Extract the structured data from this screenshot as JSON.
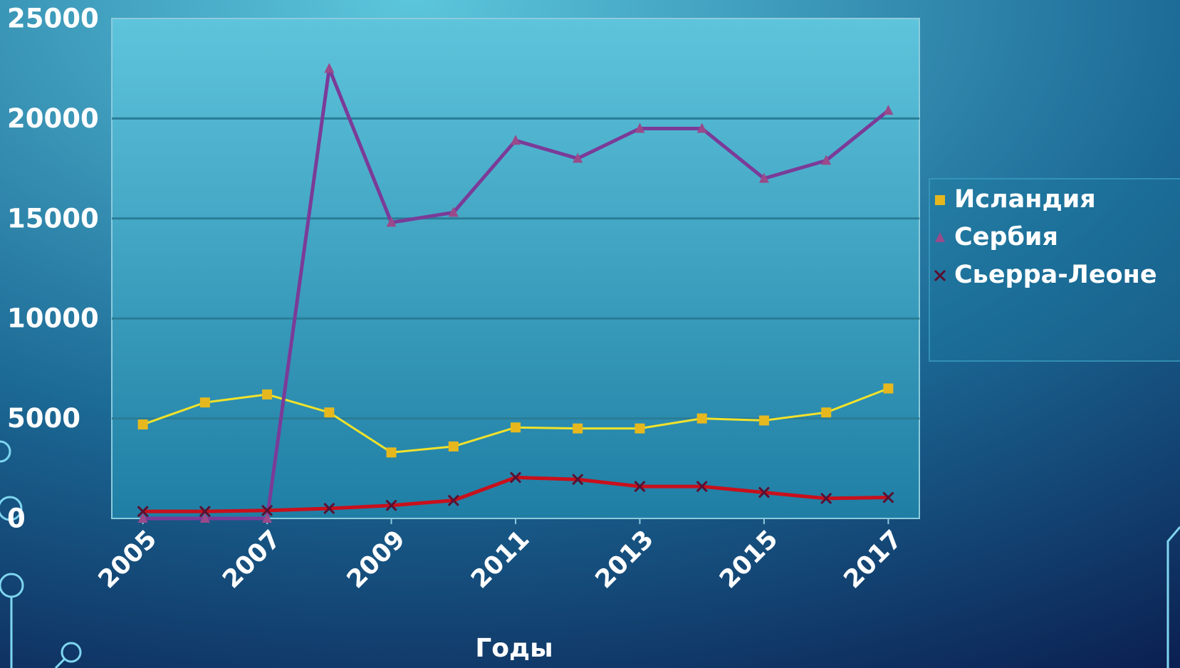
{
  "chart_data": {
    "type": "line",
    "x_label": "Годы",
    "x": [
      2005,
      2006,
      2007,
      2008,
      2009,
      2010,
      2011,
      2012,
      2013,
      2014,
      2015,
      2016,
      2017
    ],
    "xlim": [
      2004.5,
      2017.5
    ],
    "xticks": [
      2005,
      2007,
      2009,
      2011,
      2013,
      2015,
      2017
    ],
    "ylim": [
      0,
      25000
    ],
    "yticks": [
      0,
      5000,
      10000,
      15000,
      20000,
      25000
    ],
    "grid": true,
    "legend": "right",
    "series": [
      {
        "name": "Исландия",
        "color": "#f2e22a",
        "marker": "square",
        "marker_color": "#e6b81e",
        "values": [
          4700,
          5800,
          6200,
          5300,
          3300,
          3600,
          4550,
          4500,
          4500,
          5000,
          4900,
          5300,
          6500
        ]
      },
      {
        "name": "Сербия",
        "color": "#7b3b98",
        "marker": "triangle",
        "marker_color": "#9a4a8a",
        "values": [
          0,
          0,
          0,
          22500,
          14800,
          15300,
          18900,
          18000,
          19500,
          19500,
          17000,
          17900,
          20400
        ]
      },
      {
        "name": "Сьерра-Леоне",
        "color": "#c8101c",
        "marker": "x",
        "marker_color": "#5a1030",
        "values": [
          350,
          350,
          400,
          500,
          650,
          900,
          2050,
          1950,
          1600,
          1600,
          1300,
          1000,
          1050
        ]
      }
    ]
  }
}
